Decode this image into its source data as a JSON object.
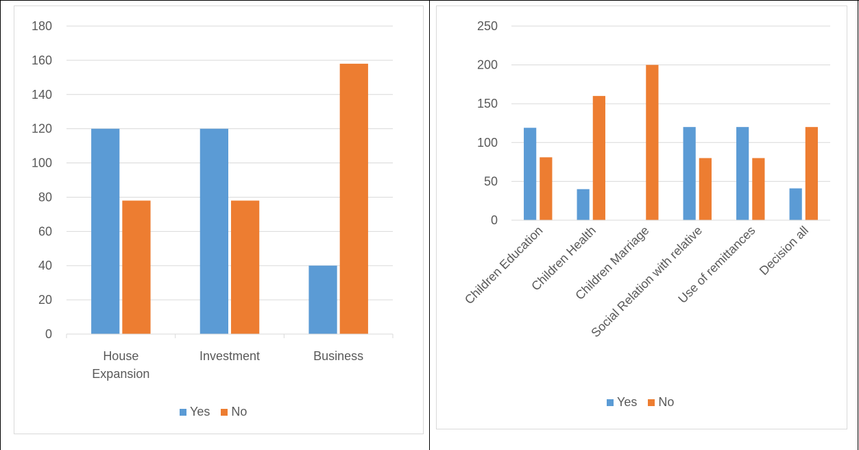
{
  "colors": {
    "yes": "#5b9bd5",
    "no": "#ed7d31",
    "grid": "#d9d9d9",
    "text": "#595959"
  },
  "chart_data": [
    {
      "type": "bar",
      "categories": [
        "House Expansion",
        "Investment",
        "Business"
      ],
      "series": [
        {
          "name": "Yes",
          "values": [
            120,
            120,
            40
          ]
        },
        {
          "name": "No",
          "values": [
            78,
            78,
            158
          ]
        }
      ],
      "yticks": [
        "0",
        "20",
        "40",
        "60",
        "80",
        "100",
        "120",
        "140",
        "160",
        "180"
      ],
      "ylim": [
        0,
        180
      ],
      "grid": true,
      "legend": "bottom"
    },
    {
      "type": "bar",
      "categories": [
        "Children Education",
        "Children Health",
        "Children Marriage",
        "Social Relation with relative",
        "Use of remittances",
        "Decision all"
      ],
      "series": [
        {
          "name": "Yes",
          "values": [
            119,
            40,
            0,
            120,
            120,
            41
          ]
        },
        {
          "name": "No",
          "values": [
            81,
            160,
            200,
            80,
            80,
            120
          ]
        }
      ],
      "yticks": [
        "0",
        "50",
        "100",
        "150",
        "200",
        "250"
      ],
      "ylim": [
        0,
        250
      ],
      "grid": true,
      "legend": "bottom"
    }
  ]
}
